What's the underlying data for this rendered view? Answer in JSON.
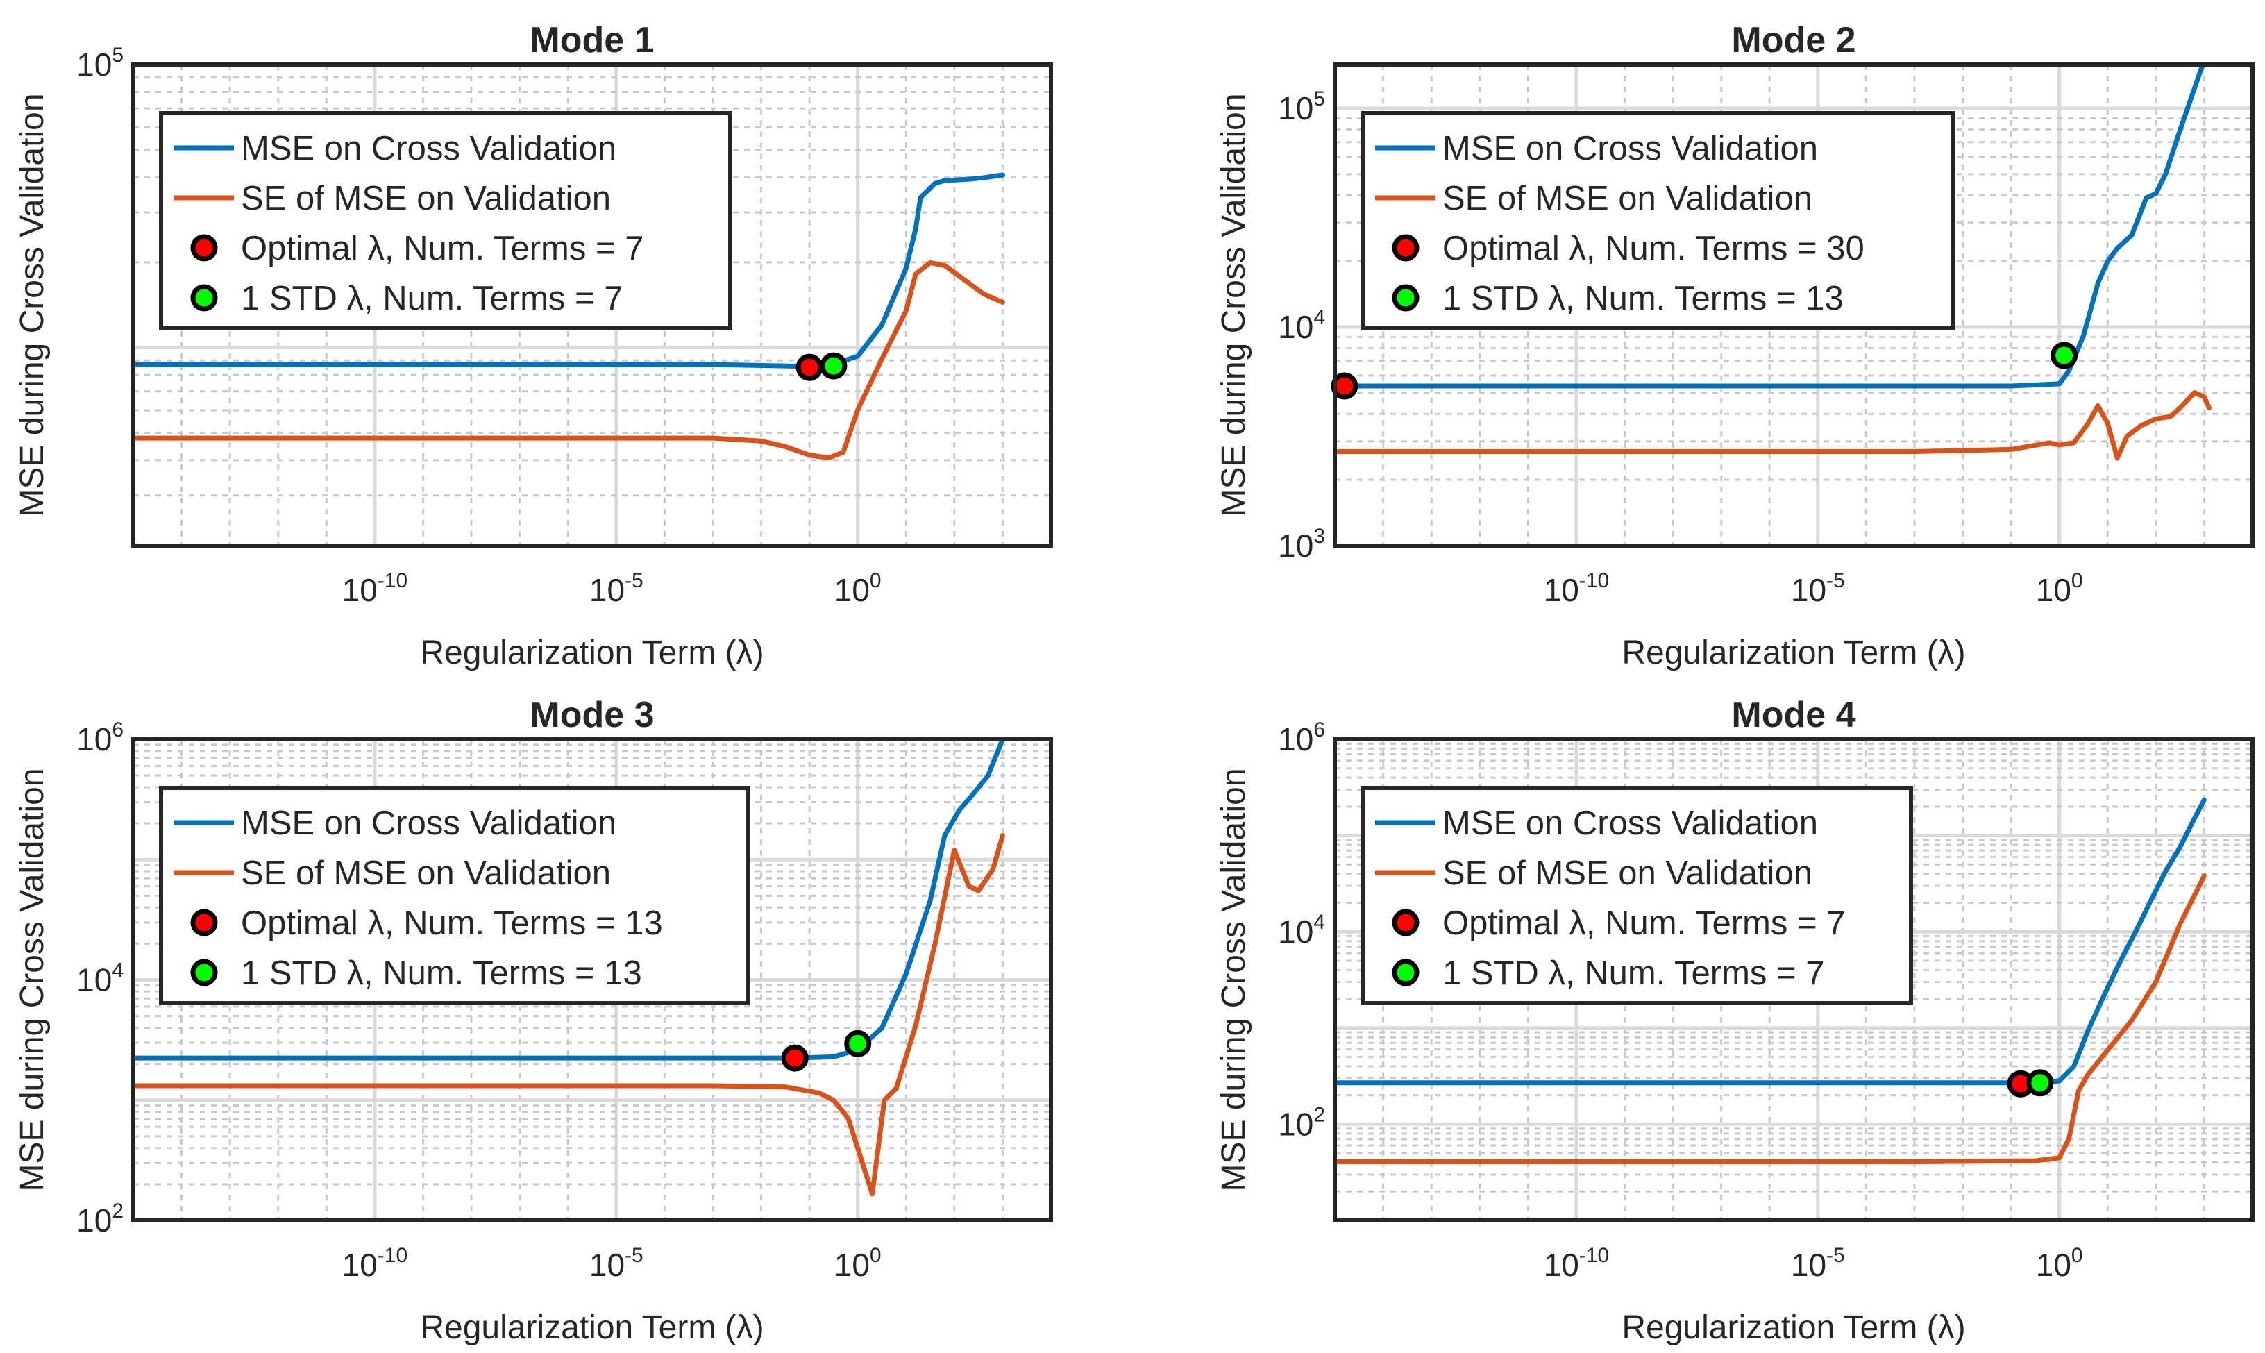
{
  "chart_data": [
    {
      "type": "line",
      "title": "Mode 1",
      "xlabel": "Regularization Term (λ)",
      "ylabel": "MSE during Cross Validation",
      "xscale": "log",
      "yscale": "log",
      "xlim_log10": [
        -15,
        4
      ],
      "ylim_log10": [
        3.3,
        5
      ],
      "xticks": [
        {
          "exp": "-10"
        },
        {
          "exp": "-5"
        },
        {
          "label": "10",
          "exp": "0",
          "text": "10⁰",
          "value": 1
        }
      ],
      "xtick_labels": [
        "10-10",
        "10-5",
        "100"
      ],
      "yticks": [
        {
          "log": 5,
          "base": "10",
          "exp": "5"
        }
      ],
      "grid": true,
      "legend_position": "top-left",
      "legend": [
        "MSE on Cross Validation",
        "SE of MSE on Validation",
        "Optimal λ, Num. Terms = 7",
        "1 STD λ, Num. Terms = 7"
      ],
      "series": [
        {
          "name": "MSE on Cross Validation",
          "color": "#0072BD",
          "x": [
            -15,
            -8,
            -3,
            -1.5,
            -0.8,
            -0.5,
            0,
            0.5,
            1,
            1.2,
            1.3,
            1.6,
            1.8,
            2.3,
            2.6,
            3
          ],
          "y": [
            3.94,
            3.94,
            3.94,
            3.935,
            3.93,
            3.94,
            3.97,
            4.08,
            4.28,
            4.42,
            4.53,
            4.58,
            4.59,
            4.595,
            4.6,
            4.61
          ]
        },
        {
          "name": "SE of MSE on Validation",
          "color": "#D95319",
          "x": [
            -15,
            -8,
            -3,
            -2,
            -1.5,
            -1.0,
            -0.6,
            -0.3,
            0,
            0.5,
            1,
            1.2,
            1.5,
            1.8,
            2.2,
            2.6,
            3
          ],
          "y": [
            3.68,
            3.68,
            3.68,
            3.67,
            3.65,
            3.62,
            3.61,
            3.63,
            3.78,
            3.96,
            4.13,
            4.26,
            4.3,
            4.29,
            4.24,
            4.19,
            4.16
          ]
        }
      ],
      "markers": [
        {
          "label": "Optimal λ",
          "x": -1.0,
          "y": 3.93,
          "color": "#FF0000"
        },
        {
          "label": "1 STD λ",
          "x": -0.5,
          "y": 3.935,
          "color": "#00FF00"
        }
      ]
    },
    {
      "type": "line",
      "title": "Mode 2",
      "xlabel": "Regularization Term (λ)",
      "ylabel": "MSE during Cross Validation",
      "xscale": "log",
      "yscale": "log",
      "xlim_log10": [
        -15,
        4
      ],
      "ylim_log10": [
        3,
        5.2
      ],
      "xtick_labels": [
        "10-10",
        "10-5",
        "100"
      ],
      "yticks": [
        {
          "log": 3,
          "base": "10",
          "exp": "3"
        },
        {
          "log": 4,
          "base": "10",
          "exp": "4"
        },
        {
          "log": 5,
          "base": "10",
          "exp": "5"
        }
      ],
      "grid": true,
      "legend_position": "top-left",
      "legend": [
        "MSE on Cross Validation",
        "SE of MSE on Validation",
        "Optimal λ, Num. Terms = 30",
        "1 STD λ, Num. Terms = 13"
      ],
      "series": [
        {
          "name": "MSE on Cross Validation",
          "color": "#0072BD",
          "x": [
            -15,
            -5,
            -1,
            0,
            0.2,
            0.5,
            0.8,
            1.0,
            1.2,
            1.5,
            1.8,
            2.0,
            2.2,
            2.5,
            3
          ],
          "y": [
            3.73,
            3.73,
            3.73,
            3.74,
            3.8,
            3.96,
            4.2,
            4.3,
            4.36,
            4.42,
            4.59,
            4.61,
            4.7,
            4.9,
            5.22
          ]
        },
        {
          "name": "SE of MSE on Validation",
          "color": "#D95319",
          "x": [
            -15,
            -3,
            -1,
            -0.2,
            0,
            0.3,
            0.6,
            0.8,
            1.0,
            1.2,
            1.4,
            1.7,
            2.0,
            2.3,
            2.5,
            2.8,
            3.0,
            3.1
          ],
          "y": [
            3.43,
            3.43,
            3.44,
            3.47,
            3.46,
            3.47,
            3.56,
            3.64,
            3.56,
            3.4,
            3.5,
            3.55,
            3.58,
            3.59,
            3.63,
            3.7,
            3.68,
            3.63
          ]
        }
      ],
      "markers": [
        {
          "label": "Optimal λ",
          "x": -14.8,
          "y": 3.73,
          "color": "#FF0000"
        },
        {
          "label": "1 STD λ",
          "x": 0.1,
          "y": 3.87,
          "color": "#00FF00"
        }
      ]
    },
    {
      "type": "line",
      "title": "Mode 3",
      "xlabel": "Regularization Term (λ)",
      "ylabel": "MSE during Cross Validation",
      "xscale": "log",
      "yscale": "log",
      "xlim_log10": [
        -15,
        4
      ],
      "ylim_log10": [
        2,
        6
      ],
      "xtick_labels": [
        "10-10",
        "10-5",
        "100"
      ],
      "yticks": [
        {
          "log": 2,
          "base": "10",
          "exp": "2"
        },
        {
          "log": 4,
          "base": "10",
          "exp": "4"
        },
        {
          "log": 6,
          "base": "10",
          "exp": "6"
        }
      ],
      "grid": true,
      "legend_position": "top-left",
      "legend": [
        "MSE on Cross Validation",
        "SE of MSE on Validation",
        "Optimal λ, Num. Terms = 13",
        "1 STD λ, Num. Terms = 13"
      ],
      "series": [
        {
          "name": "MSE on Cross Validation",
          "color": "#0072BD",
          "x": [
            -15,
            -5,
            -1.3,
            -0.5,
            0,
            0.5,
            1.0,
            1.5,
            1.8,
            2.1,
            2.4,
            2.7,
            3.0
          ],
          "y": [
            3.35,
            3.35,
            3.35,
            3.36,
            3.42,
            3.6,
            4.05,
            4.66,
            5.2,
            5.41,
            5.55,
            5.7,
            6.0
          ]
        },
        {
          "name": "SE of MSE on Validation",
          "color": "#D95319",
          "x": [
            -15,
            -3,
            -1.5,
            -0.8,
            -0.5,
            -0.2,
            0,
            0.3,
            0.55,
            0.8,
            1.2,
            1.6,
            2.0,
            2.3,
            2.5,
            2.8,
            3.0
          ],
          "y": [
            3.12,
            3.12,
            3.11,
            3.06,
            3.0,
            2.85,
            2.6,
            2.22,
            3.0,
            3.1,
            3.62,
            4.3,
            5.08,
            4.78,
            4.74,
            4.92,
            5.2
          ]
        }
      ],
      "markers": [
        {
          "label": "Optimal λ",
          "x": -1.3,
          "y": 3.35,
          "color": "#FF0000"
        },
        {
          "label": "1 STD λ",
          "x": 0,
          "y": 3.47,
          "color": "#00FF00"
        }
      ]
    },
    {
      "type": "line",
      "title": "Mode 4",
      "xlabel": "Regularization Term (λ)",
      "ylabel": "MSE during Cross Validation",
      "xscale": "log",
      "yscale": "log",
      "xlim_log10": [
        -15,
        4
      ],
      "ylim_log10": [
        1,
        6
      ],
      "xtick_labels": [
        "10-10",
        "10-5",
        "100"
      ],
      "yticks": [
        {
          "log": 2,
          "base": "10",
          "exp": "2"
        },
        {
          "log": 4,
          "base": "10",
          "exp": "4"
        },
        {
          "log": 6,
          "base": "10",
          "exp": "6"
        }
      ],
      "grid": true,
      "legend_position": "top-left",
      "legend": [
        "MSE on Cross Validation",
        "SE of MSE on Validation",
        "Optimal λ, Num. Terms = 7",
        "1 STD λ, Num. Terms = 7"
      ],
      "series": [
        {
          "name": "MSE on Cross Validation",
          "color": "#0072BD",
          "x": [
            -15,
            -5,
            -1,
            -0.5,
            0,
            0.3,
            0.6,
            1.0,
            1.3,
            1.6,
            1.9,
            2.2,
            2.5,
            2.8,
            3.0
          ],
          "y": [
            2.43,
            2.43,
            2.43,
            2.42,
            2.45,
            2.6,
            2.98,
            3.42,
            3.73,
            4.02,
            4.33,
            4.63,
            4.88,
            5.18,
            5.37
          ]
        },
        {
          "name": "SE of MSE on Validation",
          "color": "#D95319",
          "x": [
            -15,
            -3,
            -0.5,
            0,
            0.2,
            0.4,
            0.6,
            1.0,
            1.5,
            2.0,
            2.5,
            3.0
          ],
          "y": [
            1.61,
            1.61,
            1.62,
            1.65,
            1.85,
            2.35,
            2.52,
            2.77,
            3.08,
            3.48,
            4.08,
            4.58
          ]
        }
      ],
      "markers": [
        {
          "label": "Optimal λ",
          "x": -0.8,
          "y": 2.42,
          "color": "#FF0000"
        },
        {
          "label": "1 STD λ",
          "x": -0.4,
          "y": 2.43,
          "color": "#00FF00"
        }
      ]
    }
  ]
}
